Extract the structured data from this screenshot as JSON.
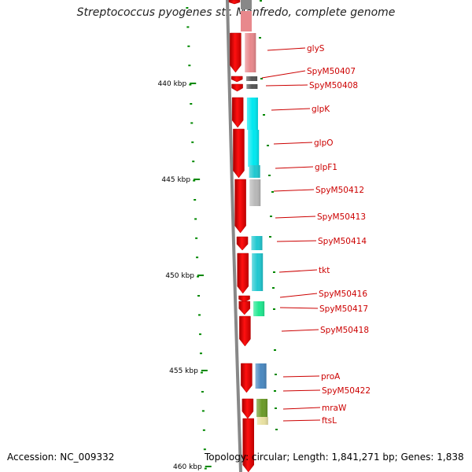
{
  "title": "Streptococcus pyogenes str. Manfredo, complete genome",
  "accession": "Accession: NC_009332",
  "topology": "Topology: circular; Length: 1,841,271 bp; Genes: 1,838",
  "scale_labels": [
    "440 kbp",
    "445 kbp",
    "450 kbp",
    "455 kbp",
    "460 kbp"
  ],
  "genes": [
    {
      "name": "glyS",
      "color": "#e8888c"
    },
    {
      "name": "SpyM50407",
      "color": "#555555"
    },
    {
      "name": "SpyM50408",
      "color": "#555555"
    },
    {
      "name": "glpK",
      "color": "#00e8f0"
    },
    {
      "name": "glpO",
      "color": "#00e8f0"
    },
    {
      "name": "glpF1",
      "color": "#20c8d0"
    },
    {
      "name": "SpyM50412",
      "color": "#b8b8b8"
    },
    {
      "name": "SpyM50413",
      "color": ""
    },
    {
      "name": "SpyM50414",
      "color": "#20c8d0"
    },
    {
      "name": "tkt",
      "color": "#20c8d0"
    },
    {
      "name": "SpyM50416",
      "color": ""
    },
    {
      "name": "SpyM50417",
      "color": "#20e890"
    },
    {
      "name": "SpyM50418",
      "color": ""
    },
    {
      "name": "proA",
      "color": "#4a88c0"
    },
    {
      "name": "SpyM50422",
      "color": ""
    },
    {
      "name": "mraW",
      "color": "#6b9a28"
    },
    {
      "name": "ftsL",
      "color": "#e8e0a0"
    }
  ],
  "colors": {
    "forward_arrow": "#ee0000",
    "label": "#cc0000",
    "tick": "#008800",
    "backbone": "#888888"
  }
}
